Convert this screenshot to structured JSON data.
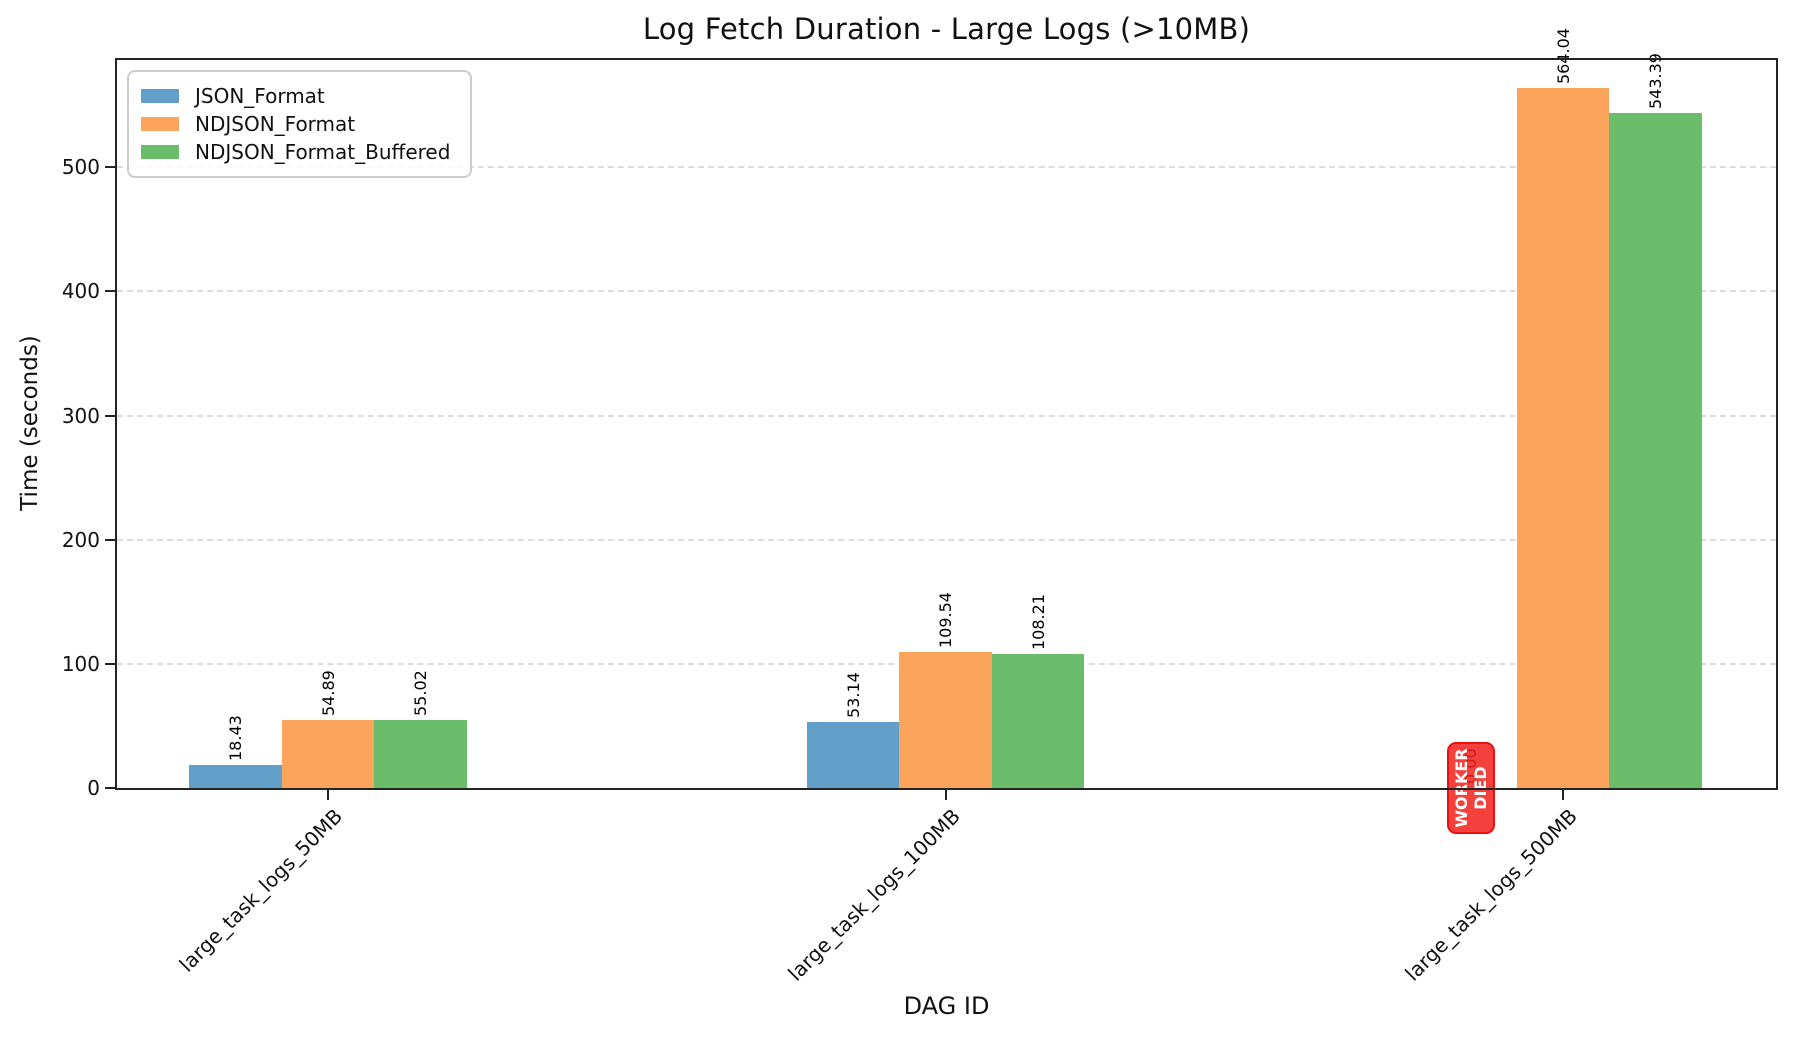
{
  "chart_data": {
    "type": "bar",
    "title": "Log Fetch Duration - Large Logs (>10MB)",
    "xlabel": "DAG ID",
    "ylabel": "Time (seconds)",
    "categories": [
      "large_task_logs_50MB",
      "large_task_logs_100MB",
      "large_task_logs_500MB"
    ],
    "series": [
      {
        "name": "JSON_Format",
        "color": "#62A0CA",
        "values": [
          18.43,
          53.14,
          0.0
        ]
      },
      {
        "name": "NDJSON_Format",
        "color": "#FBA55C",
        "values": [
          54.89,
          109.54,
          564.04
        ]
      },
      {
        "name": "NDJSON_Format_Buffered",
        "color": "#6BBC6B",
        "values": [
          55.02,
          108.21,
          543.39
        ]
      }
    ],
    "bar_value_label_decimals": 2,
    "yticks": [
      0,
      100,
      200,
      300,
      400,
      500
    ],
    "ylim": [
      0,
      588
    ],
    "grid": "horizontal-dashed",
    "legend_position": "upper-left",
    "annotation": {
      "lines": [
        "WORKER",
        "DIED"
      ],
      "target_category_index": 2,
      "target_series_index": 0,
      "badge_color": "#F2201C",
      "text_color": "#ffffff"
    }
  }
}
